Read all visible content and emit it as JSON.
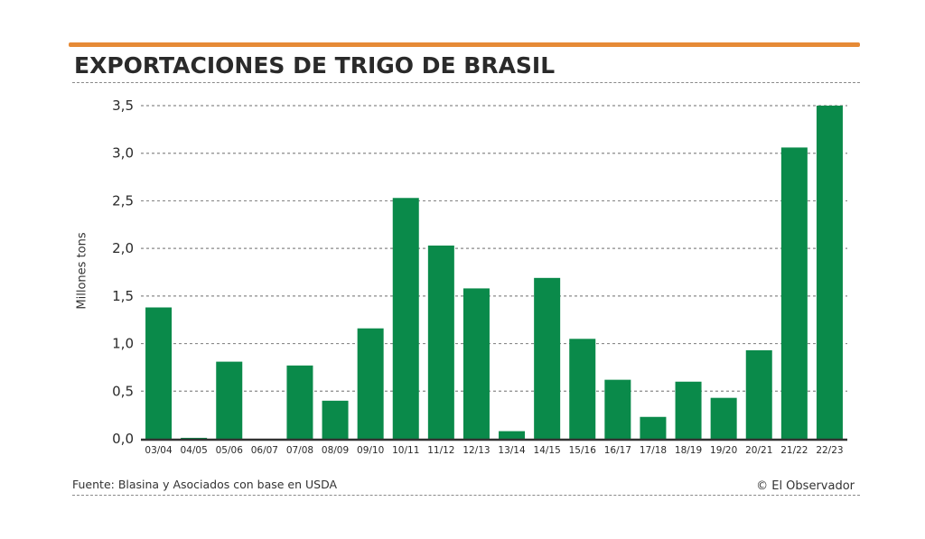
{
  "header": {
    "title": "EXPORTACIONES DE TRIGO DE BRASIL"
  },
  "footer": {
    "source": "Fuente: Blasina y Asociados con base en USDA",
    "credit": "© El Observador"
  },
  "colors": {
    "accent_bar": "#e68a36",
    "bar": "#0a8a4a",
    "text": "#2a2a2a"
  },
  "chart_data": {
    "type": "bar",
    "title": "EXPORTACIONES DE TRIGO DE BRASIL",
    "xlabel": "",
    "ylabel": "Millones tons",
    "ylim": [
      0,
      3.5
    ],
    "yticks": [
      0,
      0.5,
      1.0,
      1.5,
      2.0,
      2.5,
      3.0,
      3.5
    ],
    "ytick_labels": [
      "0,0",
      "0,5",
      "1,0",
      "1,5",
      "2,0",
      "2,5",
      "3,0",
      "3,5"
    ],
    "grid": true,
    "categories": [
      "03/04",
      "04/05",
      "05/06",
      "06/07",
      "07/08",
      "08/09",
      "09/10",
      "10/11",
      "11/12",
      "12/13",
      "13/14",
      "14/15",
      "15/16",
      "16/17",
      "17/18",
      "18/19",
      "19/20",
      "20/21",
      "21/22",
      "22/23"
    ],
    "values": [
      1.38,
      0.01,
      0.81,
      0.0,
      0.77,
      0.4,
      1.16,
      2.53,
      2.03,
      1.58,
      0.08,
      1.69,
      1.05,
      0.62,
      0.23,
      0.6,
      0.43,
      0.93,
      3.06,
      3.5
    ]
  }
}
